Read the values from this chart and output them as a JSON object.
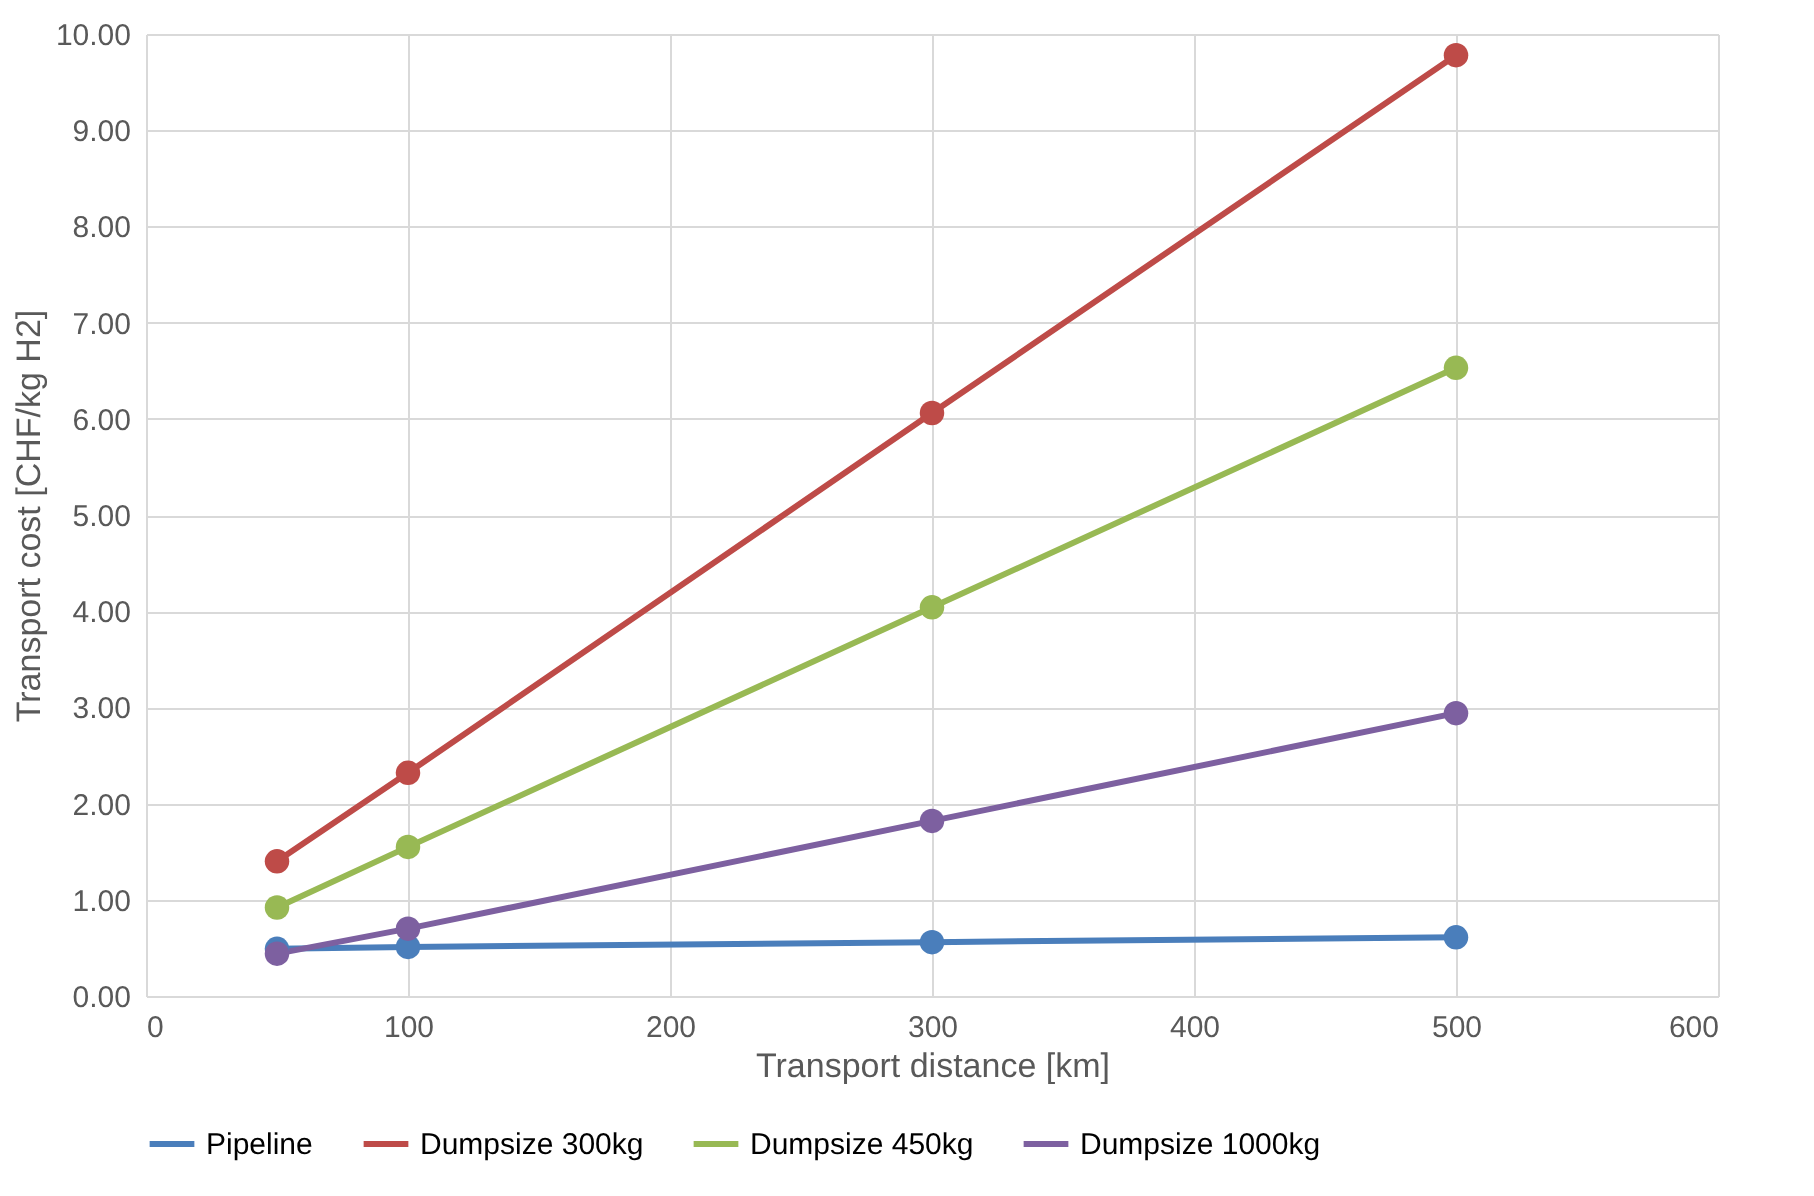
{
  "chart_data": {
    "type": "line",
    "xlabel": "Transport distance [km]",
    "ylabel": "Transport cost [CHF/kg H2]",
    "x": [
      50,
      100,
      300,
      500
    ],
    "series": [
      {
        "name": "Pipeline",
        "color": "#4a7ebb",
        "values": [
          0.49,
          0.51,
          0.56,
          0.61
        ]
      },
      {
        "name": "Dumpsize 300kg",
        "color": "#be4b48",
        "values": [
          1.4,
          2.32,
          6.06,
          9.78
        ]
      },
      {
        "name": "Dumpsize 450kg",
        "color": "#98b954",
        "values": [
          0.92,
          1.55,
          4.04,
          6.53
        ]
      },
      {
        "name": "Dumpsize 1000kg",
        "color": "#7d60a0",
        "values": [
          0.44,
          0.7,
          1.82,
          2.94
        ]
      }
    ],
    "xlim": [
      0,
      600
    ],
    "xticks": [
      0,
      100,
      200,
      300,
      400,
      500,
      600
    ],
    "ylim": [
      0,
      10
    ],
    "yticks": [
      {
        "value": 0,
        "label": "0.00"
      },
      {
        "value": 1,
        "label": "1.00"
      },
      {
        "value": 2,
        "label": "2.00"
      },
      {
        "value": 3,
        "label": "3.00"
      },
      {
        "value": 4,
        "label": "4.00"
      },
      {
        "value": 5,
        "label": "5.00"
      },
      {
        "value": 6,
        "label": "6.00"
      },
      {
        "value": 7,
        "label": "7.00"
      },
      {
        "value": 8,
        "label": "8.00"
      },
      {
        "value": 9,
        "label": "9.00"
      },
      {
        "value": 10,
        "label": "10.00"
      }
    ],
    "grid": true,
    "legend": "bottom",
    "marker": "circle",
    "line_style": "solid"
  }
}
